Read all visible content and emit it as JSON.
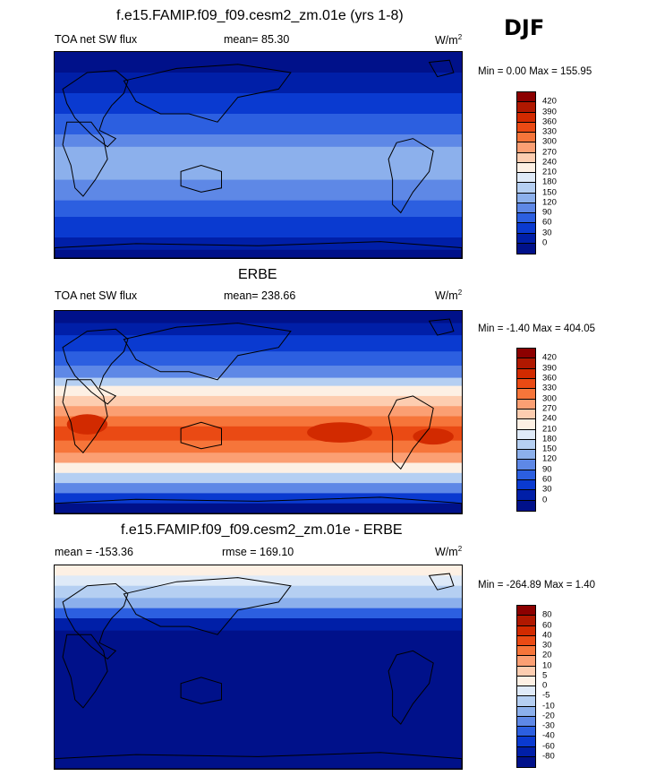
{
  "chart_data": [
    {
      "type": "heatmap",
      "title": "f.e15.FAMIP.f09_f09.cesm2_zm.01e (yrs 1-8)",
      "left_label": "TOA net SW flux",
      "center_label": "mean=  85.30",
      "units_base": "W/m",
      "units_exp": "2",
      "minmax_label": "Min =   0.00 Max = 155.95",
      "colorbar_levels": [
        "420",
        "390",
        "360",
        "330",
        "300",
        "270",
        "240",
        "210",
        "180",
        "150",
        "120",
        "90",
        "60",
        "30",
        "0"
      ]
    },
    {
      "type": "heatmap",
      "title": "ERBE",
      "left_label": "TOA net SW flux",
      "center_label": "mean= 238.66",
      "units_base": "W/m",
      "units_exp": "2",
      "minmax_label": "Min =  -1.40 Max = 404.05",
      "colorbar_levels": [
        "420",
        "390",
        "360",
        "330",
        "300",
        "270",
        "240",
        "210",
        "180",
        "150",
        "120",
        "90",
        "60",
        "30",
        "0"
      ]
    },
    {
      "type": "heatmap",
      "title": "f.e15.FAMIP.f09_f09.cesm2_zm.01e - ERBE",
      "left_label": "mean = -153.36",
      "center_label": "rmse = 169.10",
      "units_base": "W/m",
      "units_exp": "2",
      "minmax_label": "Min = -264.89 Max =   1.40",
      "colorbar_levels": [
        "80",
        "60",
        "40",
        "30",
        "20",
        "10",
        "5",
        "0",
        "-5",
        "-10",
        "-20",
        "-30",
        "-40",
        "-60",
        "-80"
      ]
    }
  ],
  "season": "DJF",
  "colors": [
    "#8c0000",
    "#b01800",
    "#d22a00",
    "#ea4a14",
    "#f6753a",
    "#fb9f73",
    "#fdcdb0",
    "#fdf0e4",
    "#dfeaf8",
    "#b5cff2",
    "#8cb0ec",
    "#5e88e6",
    "#2c5fe0",
    "#0a3ad0",
    "#001fa8",
    "#00118a"
  ],
  "land_color": "none",
  "map_note": "Coastlines drawn as black outlines over filled contours"
}
